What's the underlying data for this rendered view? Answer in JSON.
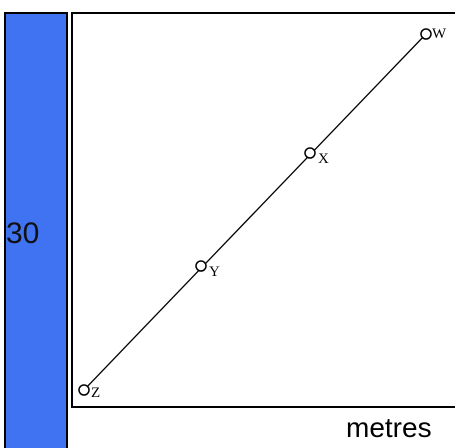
{
  "strip": {
    "value": "30",
    "color": "#3f73f2"
  },
  "unit_label": "metres",
  "points": [
    {
      "id": "W",
      "label": "W"
    },
    {
      "id": "X",
      "label": "X"
    },
    {
      "id": "Y",
      "label": "Y"
    },
    {
      "id": "Z",
      "label": "Z"
    }
  ]
}
